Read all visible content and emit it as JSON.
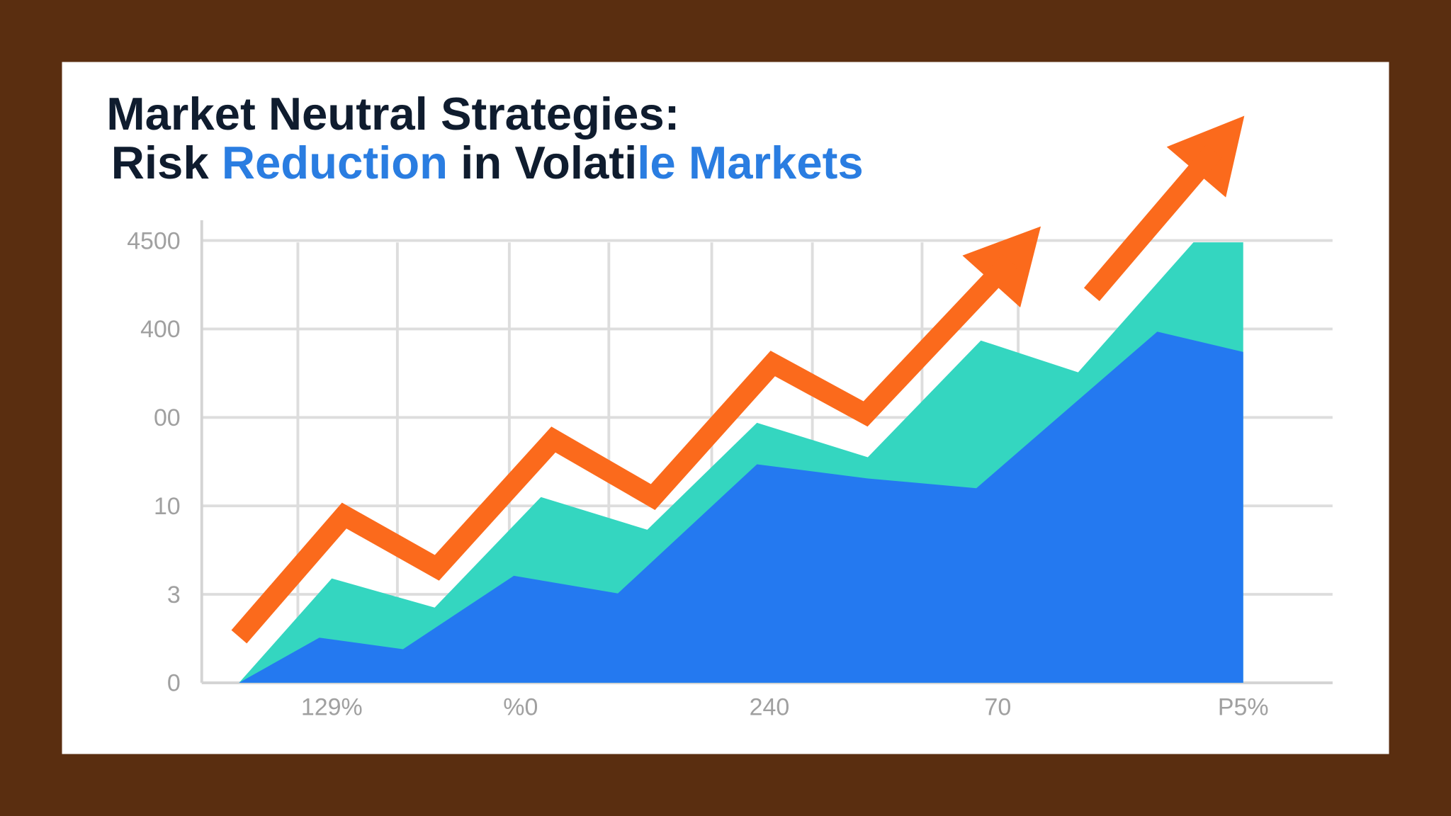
{
  "chart_data": {
    "type": "area",
    "title_lines": [
      [
        {
          "text": "Market Neutral Strategies:",
          "color": "#0f1c2e"
        }
      ],
      [
        {
          "text": "Risk ",
          "color": "#0f1c2e"
        },
        {
          "text": "Reduction",
          "color": "#2a7de1"
        },
        {
          "text": " in Volati",
          "color": "#0f1c2e"
        },
        {
          "text": "le Markets",
          "color": "#2a7de1"
        }
      ]
    ],
    "xlim": [
      0,
      100
    ],
    "ylim": [
      0,
      500
    ],
    "yticks": [
      0,
      {
        "value": 100,
        "label": "3"
      },
      {
        "value": 200,
        "label": "10"
      },
      {
        "value": 300,
        "label": "00"
      },
      400,
      {
        "value": 500,
        "label": "4500"
      }
    ],
    "xticks": [
      {
        "value": 11.5,
        "label": "129%"
      },
      {
        "value": 28.2,
        "label": "%0"
      },
      {
        "value": 50.2,
        "label": "240"
      },
      {
        "value": 70.4,
        "label": "70"
      },
      {
        "value": 92.1,
        "label": "P5%"
      }
    ],
    "xgrid": [
      8.5,
      17.3,
      27.2,
      36.0,
      45.1,
      54.0,
      63.7,
      72.2
    ],
    "grid": true,
    "series": [
      {
        "type": "area",
        "color": "#34d6c0",
        "x": [
          3.3,
          11.5,
          20.6,
          30.0,
          39.4,
          49.1,
          58.9,
          68.9,
          77.5,
          87.7,
          92.1
        ],
        "values": [
          0,
          118,
          85,
          210,
          173,
          294,
          255,
          387,
          351,
          498,
          498
        ]
      },
      {
        "type": "area",
        "color": "#2479f0",
        "x": [
          3.3,
          10.4,
          17.8,
          27.6,
          36.8,
          49.1,
          58.9,
          68.5,
          84.5,
          92.1
        ],
        "values": [
          0,
          51,
          38,
          121,
          101,
          247,
          231,
          220,
          397,
          374
        ]
      },
      {
        "type": "arrow-line",
        "color": "#fb6a1c",
        "x": [
          3.3,
          12.6,
          20.8,
          31.1,
          39.9,
          50.5,
          58.7,
          70.9,
          74.2,
          null,
          78.7,
          92.2
        ],
        "values": [
          52,
          189,
          130,
          275,
          210,
          361,
          304,
          469,
          516,
          null,
          439,
          641
        ]
      }
    ]
  }
}
